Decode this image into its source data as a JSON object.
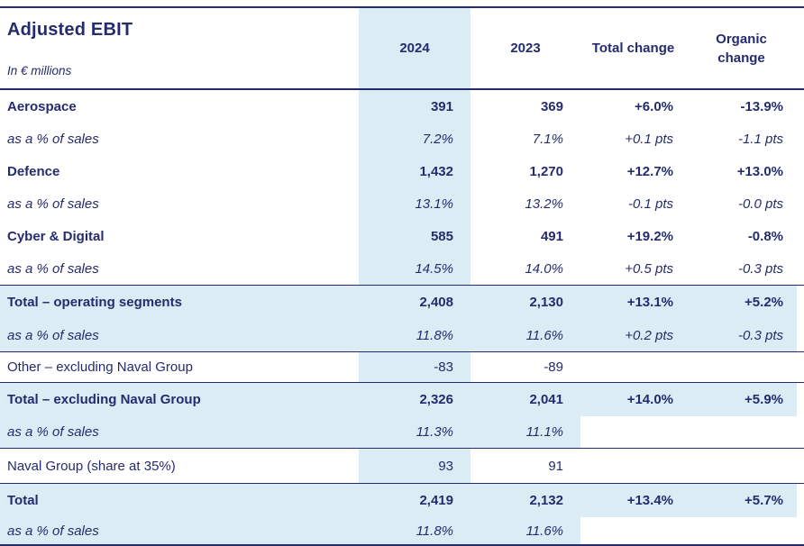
{
  "meta": {
    "title": "Adjusted EBIT",
    "subtitle": "In € millions"
  },
  "colors": {
    "navy": "#252c6e",
    "light_blue": "#dcecf4",
    "white": "#ffffff"
  },
  "columns": {
    "col_2024": "2024",
    "col_2023": "2023",
    "total_change": "Total change",
    "organic_change": "Organic change"
  },
  "rows": [
    {
      "label": "Aerospace",
      "style": "seg",
      "bg": "plain",
      "rule_above": false,
      "values": [
        "391",
        "369",
        "+6.0%",
        "-13.9%"
      ]
    },
    {
      "label": "as a % of sales",
      "style": "pct",
      "bg": "plain",
      "rule_above": false,
      "values": [
        "7.2%",
        "7.1%",
        "+0.1 pts",
        "-1.1 pts"
      ]
    },
    {
      "label": "Defence",
      "style": "seg",
      "bg": "plain",
      "rule_above": false,
      "values": [
        "1,432",
        "1,270",
        "+12.7%",
        "+13.0%"
      ]
    },
    {
      "label": "as a % of sales",
      "style": "pct",
      "bg": "plain",
      "rule_above": false,
      "values": [
        "13.1%",
        "13.2%",
        "-0.1 pts",
        "-0.0 pts"
      ]
    },
    {
      "label": "Cyber & Digital",
      "style": "seg",
      "bg": "plain",
      "rule_above": false,
      "values": [
        "585",
        "491",
        "+19.2%",
        "-0.8%"
      ]
    },
    {
      "label": "as a % of sales",
      "style": "pct",
      "bg": "plain",
      "rule_above": false,
      "values": [
        "14.5%",
        "14.0%",
        "+0.5 pts",
        "-0.3 pts"
      ]
    },
    {
      "label": "Total – operating segments",
      "style": "seg",
      "bg": "band",
      "rule_above": true,
      "values": [
        "2,408",
        "2,130",
        "+13.1%",
        "+5.2%"
      ]
    },
    {
      "label": "as a % of sales",
      "style": "pct",
      "bg": "band",
      "rule_above": false,
      "values": [
        "11.8%",
        "11.6%",
        "+0.2 pts",
        "-0.3 pts"
      ]
    },
    {
      "label": "Other – excluding Naval Group",
      "style": "plainrow",
      "bg": "plain",
      "rule_above": true,
      "values": [
        "-83",
        "-89",
        "",
        ""
      ]
    },
    {
      "label": "Total – excluding Naval Group",
      "style": "seg",
      "bg": "band",
      "rule_above": true,
      "values": [
        "2,326",
        "2,041",
        "+14.0%",
        "+5.9%"
      ]
    },
    {
      "label": "as a % of sales",
      "style": "pct",
      "bg": "band_partial",
      "rule_above": false,
      "values": [
        "11.3%",
        "11.1%",
        "",
        ""
      ]
    },
    {
      "label": "Naval Group (share at 35%)",
      "style": "plainrow",
      "bg": "plain",
      "rule_above": true,
      "values": [
        "93",
        "91",
        "",
        ""
      ]
    },
    {
      "label": "Total",
      "style": "seg",
      "bg": "band",
      "rule_above": true,
      "values": [
        "2,419",
        "2,132",
        "+13.4%",
        "+5.7%"
      ]
    },
    {
      "label": "as a % of sales",
      "style": "pct",
      "bg": "band_partial",
      "rule_above": false,
      "values": [
        "11.8%",
        "11.6%",
        "",
        ""
      ]
    }
  ]
}
